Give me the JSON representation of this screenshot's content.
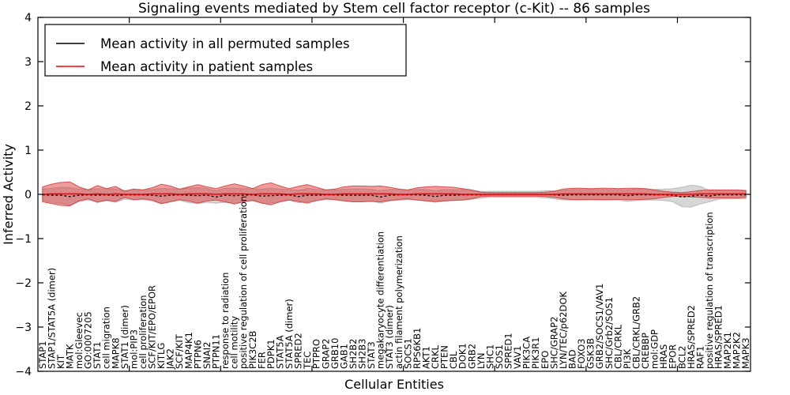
{
  "chart_data": {
    "type": "line",
    "title": "Signaling events mediated by Stem cell factor receptor (c-Kit) -- 86 samples",
    "xlabel": "Cellular Entities",
    "ylabel": "Inferred Activity",
    "ylim": [
      -4,
      4
    ],
    "xlim": [
      0,
      78
    ],
    "yticks": [
      4,
      3,
      2,
      1,
      0,
      -1,
      -2,
      -3,
      -4
    ],
    "xticks_major_every": 10,
    "grid": false,
    "legend_position": "upper-left",
    "legend": [
      {
        "label": "Mean activity in all permuted samples",
        "color": "#000000",
        "style": "dashed"
      },
      {
        "label": "Mean activity in patient samples",
        "color": "#ff0000",
        "style": "solid"
      }
    ],
    "colors": {
      "patient_line": "#ff0000",
      "patient_fill": "rgba(221,58,58,0.50)",
      "patient_edge": "rgba(205,45,45,0.75)",
      "permuted_line": "#000000",
      "permuted_fill": "rgba(128,128,128,0.32)",
      "axis": "#000000"
    },
    "entities": [
      "STAP1",
      "STAP1/STAT5A (dimer)",
      "KIT",
      "MATK",
      "mol:Gleevec",
      "GO:0007205",
      "STAT1",
      "cell migration",
      "MAPK8",
      "STAT1 (dimer)",
      "mol:PIP3",
      "cell proliferation",
      "SCF/KIT/EPO/EPOR",
      "KITLG",
      "JAK2",
      "SCF/KIT",
      "MAP4K1",
      "PTPN6",
      "SNAI2",
      "PTPN11",
      "response to radiation",
      "cell motility",
      "positive regulation of cell proliferation",
      "PIK3C2B",
      "FER",
      "PDPK1",
      "STAT5A",
      "STAT5A (dimer)",
      "SPRED2",
      "TEC",
      "PTPRO",
      "GRAP2",
      "GRB10",
      "GAB1",
      "SH2B2",
      "SH2B3",
      "STAT3",
      "megakaryocyte differentiation",
      "STAT3 (dimer)",
      "actin filament polymerization",
      "SOCS1",
      "RPS6KB1",
      "AKT1",
      "CRKL",
      "PTEN",
      "CBL",
      "DOK1",
      "GRB2",
      "LYN",
      "SHC1",
      "SOS1",
      "SPRED1",
      "VAV1",
      "PIK3CA",
      "PIK3R1",
      "EPO",
      "SHC/GRAP2",
      "LYN/TEC/p62DOK",
      "BAD",
      "FOXO3",
      "GSK3B",
      "GRB2/SOCS1/VAV1",
      "SHC/Grb2/SOS1",
      "CBL/CRKL",
      "PI3K",
      "CBL/CRKL/GRB2",
      "CREBBP",
      "mol:GDP",
      "HRAS",
      "EPOR",
      "BCL2",
      "HRAS/SPRED2",
      "RAF1",
      "positive regulation of transcription",
      "HRAS/SPRED1",
      "MAP2K1",
      "MAP2K2",
      "MAPK3"
    ],
    "series": [
      {
        "name": "Mean activity in all permuted samples",
        "values": [
          -0.01,
          -0.02,
          -0.02,
          -0.05,
          -0.02,
          -0.01,
          -0.02,
          -0.01,
          -0.03,
          -0.01,
          -0.01,
          -0.01,
          -0.02,
          -0.04,
          -0.02,
          -0.01,
          -0.02,
          -0.03,
          -0.02,
          -0.06,
          -0.02,
          -0.03,
          -0.02,
          -0.01,
          -0.04,
          -0.03,
          -0.02,
          -0.01,
          -0.05,
          -0.02,
          -0.02,
          -0.01,
          -0.01,
          -0.02,
          -0.02,
          -0.02,
          -0.02,
          -0.06,
          -0.02,
          -0.01,
          -0.01,
          -0.01,
          -0.02,
          -0.05,
          -0.02,
          -0.02,
          -0.01,
          -0.01,
          -0.01,
          0.0,
          0.0,
          0.0,
          0.0,
          0.0,
          0.0,
          0.0,
          -0.01,
          -0.02,
          -0.01,
          -0.01,
          -0.01,
          -0.01,
          -0.01,
          -0.01,
          -0.03,
          -0.01,
          -0.01,
          -0.01,
          -0.01,
          -0.02,
          -0.06,
          -0.04,
          -0.02,
          -0.04,
          -0.01,
          -0.01,
          -0.01,
          -0.01
        ],
        "band_halfwidth": [
          0.13,
          0.16,
          0.18,
          0.2,
          0.14,
          0.12,
          0.15,
          0.14,
          0.15,
          0.1,
          0.12,
          0.11,
          0.13,
          0.17,
          0.15,
          0.13,
          0.17,
          0.18,
          0.16,
          0.14,
          0.16,
          0.17,
          0.15,
          0.14,
          0.16,
          0.17,
          0.14,
          0.12,
          0.14,
          0.15,
          0.13,
          0.11,
          0.11,
          0.13,
          0.14,
          0.14,
          0.13,
          0.14,
          0.13,
          0.12,
          0.11,
          0.12,
          0.13,
          0.13,
          0.13,
          0.12,
          0.12,
          0.1,
          0.08,
          0.07,
          0.07,
          0.07,
          0.07,
          0.07,
          0.07,
          0.08,
          0.09,
          0.11,
          0.12,
          0.12,
          0.12,
          0.12,
          0.12,
          0.12,
          0.13,
          0.13,
          0.12,
          0.12,
          0.13,
          0.15,
          0.22,
          0.25,
          0.2,
          0.13,
          0.1,
          0.09,
          0.09,
          0.09
        ]
      },
      {
        "name": "Mean activity in patient samples",
        "values": [
          0.0,
          0.01,
          0.01,
          0.01,
          0.01,
          0.0,
          0.01,
          0.0,
          0.01,
          0.0,
          0.0,
          0.0,
          0.01,
          0.01,
          0.01,
          0.0,
          0.01,
          0.01,
          0.01,
          0.0,
          0.01,
          0.01,
          0.01,
          0.0,
          0.01,
          0.01,
          0.01,
          0.0,
          0.01,
          0.01,
          0.01,
          0.0,
          0.0,
          0.01,
          0.01,
          0.01,
          0.01,
          0.01,
          0.01,
          0.0,
          0.0,
          0.01,
          0.01,
          0.01,
          0.01,
          0.01,
          0.0,
          0.0,
          0.0,
          0.0,
          0.0,
          0.0,
          0.0,
          0.0,
          0.0,
          0.0,
          0.0,
          0.01,
          0.01,
          0.01,
          0.01,
          0.01,
          0.01,
          0.01,
          0.01,
          0.01,
          0.01,
          0.0,
          0.0,
          0.0,
          0.0,
          0.0,
          0.01,
          0.01,
          0.01,
          0.01,
          0.01,
          0.01
        ],
        "band_halfwidth": [
          0.17,
          0.22,
          0.26,
          0.27,
          0.16,
          0.1,
          0.19,
          0.13,
          0.17,
          0.07,
          0.12,
          0.1,
          0.14,
          0.22,
          0.18,
          0.12,
          0.16,
          0.21,
          0.16,
          0.13,
          0.18,
          0.23,
          0.18,
          0.13,
          0.21,
          0.25,
          0.18,
          0.13,
          0.17,
          0.21,
          0.15,
          0.1,
          0.12,
          0.16,
          0.18,
          0.18,
          0.17,
          0.18,
          0.15,
          0.12,
          0.1,
          0.14,
          0.16,
          0.17,
          0.16,
          0.15,
          0.13,
          0.1,
          0.05,
          0.04,
          0.04,
          0.04,
          0.04,
          0.04,
          0.04,
          0.05,
          0.07,
          0.11,
          0.13,
          0.13,
          0.12,
          0.13,
          0.13,
          0.12,
          0.13,
          0.13,
          0.12,
          0.1,
          0.07,
          0.05,
          0.04,
          0.06,
          0.08,
          0.09,
          0.09,
          0.09,
          0.09,
          0.08
        ]
      }
    ]
  }
}
